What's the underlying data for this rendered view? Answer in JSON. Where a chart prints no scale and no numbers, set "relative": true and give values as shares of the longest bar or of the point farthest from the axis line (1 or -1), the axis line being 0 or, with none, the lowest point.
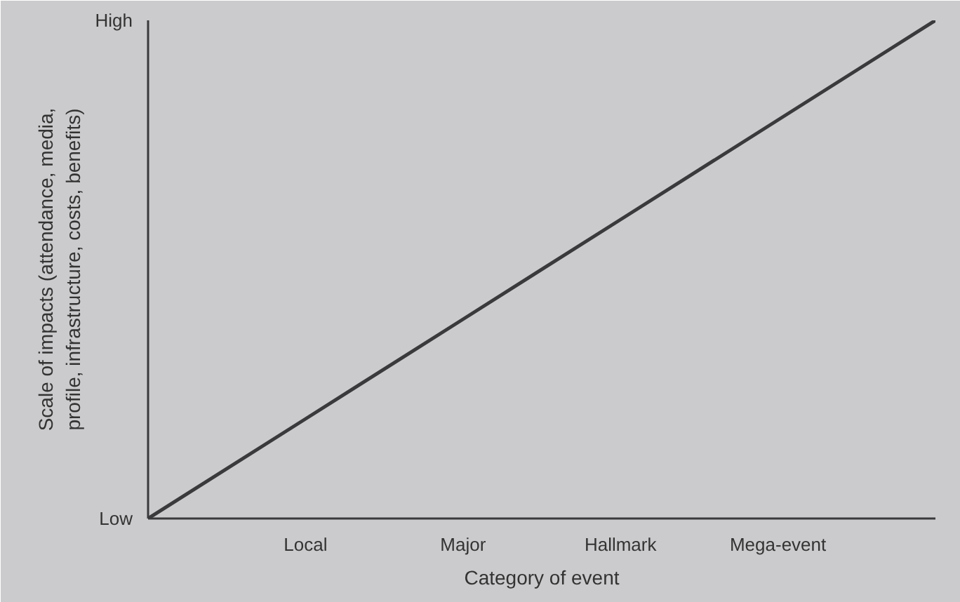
{
  "chart_data": {
    "type": "line",
    "relative": true,
    "xlabel": "Category of event",
    "ylabel": "Scale of impacts (attendance, media,\nprofile, infrastructure, costs, benefits)",
    "categories": [
      null,
      "Local",
      "Major",
      "Hallmark",
      "Mega-event",
      null
    ],
    "series": [
      {
        "color": "#3a3a3c",
        "values": [
          0,
          0.2,
          0.4,
          0.6,
          0.8,
          1
        ]
      }
    ],
    "annotations": [
      "High",
      "Low"
    ],
    "marker": "none",
    "line_style": "solid"
  }
}
